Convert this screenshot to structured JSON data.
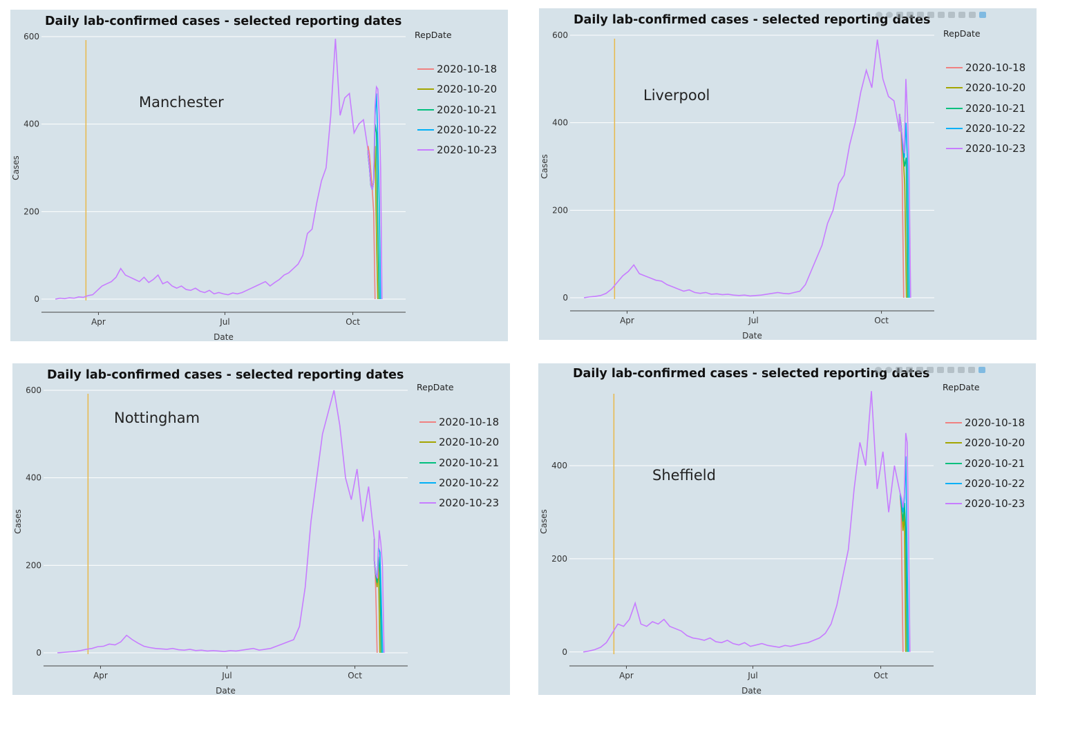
{
  "palette": {
    "panel_bg": "#d6e2e9",
    "grid": "#ffffff",
    "axis": "#444444",
    "vline": "#e8b84a",
    "series_colors": [
      "#f08080",
      "#a3a500",
      "#00bf7d",
      "#00b0f6",
      "#c77cff"
    ]
  },
  "modebar_icons": [
    "camera-icon",
    "zoom-icon",
    "pan-icon",
    "zoom-in-icon",
    "zoom-out-icon",
    "autoscale-icon",
    "home-icon",
    "spike-icon",
    "hover-closest-icon",
    "hover-compare-icon",
    "plotly-logo-icon"
  ],
  "chart_data": [
    {
      "type": "line",
      "title": "Daily lab-confirmed cases - selected reporting dates",
      "annotation": "Manchester",
      "xlabel": "Date",
      "ylabel": "Cases",
      "xticks": [
        "Apr",
        "Jul",
        "Oct"
      ],
      "yticks": [
        "0",
        "200",
        "400",
        "600"
      ],
      "ylim": [
        -30,
        630
      ],
      "xlim": [
        "2020-02-20",
        "2020-11-08"
      ],
      "grid": true,
      "vertical_line": "2020-03-23",
      "legend_title": "RepDate",
      "legend_position": "right",
      "series": [
        {
          "name": "2020-10-18",
          "end": "2020-10-17",
          "values": [
            350,
            330,
            290,
            250,
            200,
            0
          ]
        },
        {
          "name": "2020-10-20",
          "end": "2020-10-19",
          "values": [
            330,
            300,
            260,
            250,
            270,
            350,
            150,
            0
          ]
        },
        {
          "name": "2020-10-21",
          "end": "2020-10-20",
          "values": [
            330,
            300,
            260,
            250,
            270,
            400,
            380,
            160,
            0
          ]
        },
        {
          "name": "2020-10-22",
          "end": "2020-10-21",
          "values": [
            330,
            300,
            260,
            250,
            270,
            420,
            470,
            360,
            220,
            0
          ]
        },
        {
          "name": "2020-10-23",
          "end": "2020-10-22",
          "values": [
            330,
            300,
            260,
            250,
            270,
            440,
            485,
            480,
            420,
            300,
            0
          ]
        }
      ],
      "history": {
        "start": "2020-03-01",
        "end": "2020-10-12",
        "values": [
          0,
          2,
          1,
          3,
          2,
          5,
          4,
          8,
          10,
          20,
          30,
          35,
          40,
          50,
          70,
          55,
          50,
          45,
          40,
          50,
          38,
          45,
          55,
          35,
          40,
          30,
          25,
          30,
          22,
          20,
          25,
          18,
          15,
          20,
          12,
          15,
          12,
          10,
          14,
          12,
          15,
          20,
          25,
          30,
          35,
          40,
          30,
          38,
          45,
          55,
          60,
          70,
          80,
          100,
          150,
          160,
          220,
          270,
          300,
          420,
          595,
          420,
          460,
          470,
          380,
          400,
          410,
          340
        ]
      }
    },
    {
      "type": "line",
      "title": "Daily lab-confirmed cases - selected reporting dates",
      "annotation": "Liverpool",
      "xlabel": "Date",
      "ylabel": "Cases",
      "xticks": [
        "Apr",
        "Jul",
        "Oct"
      ],
      "yticks": [
        "0",
        "200",
        "400",
        "600"
      ],
      "ylim": [
        -30,
        630
      ],
      "xlim": [
        "2020-02-20",
        "2020-11-08"
      ],
      "grid": true,
      "vertical_line": "2020-03-23",
      "legend_title": "RepDate",
      "legend_position": "right",
      "series": [
        {
          "name": "2020-10-18",
          "end": "2020-10-17",
          "values": [
            420,
            400,
            260,
            0
          ]
        },
        {
          "name": "2020-10-20",
          "end": "2020-10-19",
          "values": [
            420,
            390,
            330,
            260,
            0
          ]
        },
        {
          "name": "2020-10-21",
          "end": "2020-10-20",
          "values": [
            420,
            390,
            340,
            300,
            320,
            0
          ]
        },
        {
          "name": "2020-10-22",
          "end": "2020-10-21",
          "values": [
            420,
            390,
            350,
            320,
            400,
            300,
            0
          ]
        },
        {
          "name": "2020-10-23",
          "end": "2020-10-22",
          "values": [
            420,
            390,
            360,
            330,
            500,
            420,
            300,
            0
          ]
        }
      ],
      "history": {
        "start": "2020-03-01",
        "end": "2020-10-14",
        "values": [
          0,
          2,
          3,
          5,
          10,
          20,
          35,
          50,
          60,
          75,
          55,
          50,
          45,
          40,
          38,
          30,
          25,
          20,
          15,
          18,
          12,
          10,
          12,
          8,
          9,
          7,
          8,
          6,
          5,
          6,
          4,
          5,
          6,
          8,
          10,
          12,
          10,
          9,
          12,
          15,
          30,
          60,
          90,
          120,
          170,
          200,
          260,
          280,
          350,
          400,
          470,
          520,
          480,
          590,
          500,
          460,
          450,
          380
        ]
      }
    },
    {
      "type": "line",
      "title": "Daily lab-confirmed cases - selected reporting dates",
      "annotation": "Nottingham",
      "xlabel": "Date",
      "ylabel": "Cases",
      "xticks": [
        "Apr",
        "Jul",
        "Oct"
      ],
      "yticks": [
        "0",
        "200",
        "400",
        "600"
      ],
      "ylim": [
        -30,
        630
      ],
      "xlim": [
        "2020-02-20",
        "2020-11-08"
      ],
      "grid": true,
      "vertical_line": "2020-03-23",
      "legend_title": "RepDate",
      "legend_position": "right",
      "series": [
        {
          "name": "2020-10-18",
          "end": "2020-10-17",
          "values": [
            210,
            180,
            100,
            0
          ]
        },
        {
          "name": "2020-10-20",
          "end": "2020-10-19",
          "values": [
            210,
            180,
            150,
            200,
            0
          ]
        },
        {
          "name": "2020-10-21",
          "end": "2020-10-20",
          "values": [
            210,
            180,
            160,
            220,
            180,
            0
          ]
        },
        {
          "name": "2020-10-22",
          "end": "2020-10-21",
          "values": [
            210,
            180,
            170,
            240,
            230,
            120,
            0
          ]
        },
        {
          "name": "2020-10-23",
          "end": "2020-10-22",
          "values": [
            210,
            180,
            170,
            280,
            250,
            200,
            0
          ]
        }
      ],
      "history": {
        "start": "2020-03-01",
        "end": "2020-10-15",
        "values": [
          0,
          1,
          2,
          3,
          5,
          8,
          10,
          14,
          15,
          20,
          18,
          25,
          40,
          30,
          22,
          15,
          12,
          10,
          9,
          8,
          10,
          7,
          6,
          8,
          5,
          6,
          4,
          5,
          4,
          3,
          5,
          4,
          6,
          8,
          10,
          6,
          8,
          10,
          15,
          20,
          25,
          30,
          60,
          150,
          300,
          400,
          500,
          550,
          600,
          520,
          400,
          350,
          420,
          300,
          380,
          260
        ]
      }
    },
    {
      "type": "line",
      "title": "Daily lab-confirmed cases - selected reporting dates",
      "annotation": "Sheffield",
      "xlabel": "Date",
      "ylabel": "Cases",
      "xticks": [
        "Apr",
        "Jul",
        "Oct"
      ],
      "yticks": [
        "0",
        "200",
        "400"
      ],
      "ylim": [
        -30,
        590
      ],
      "xlim": [
        "2020-02-20",
        "2020-11-08"
      ],
      "grid": true,
      "vertical_line": "2020-03-23",
      "legend_title": "RepDate",
      "legend_position": "right",
      "series": [
        {
          "name": "2020-10-18",
          "end": "2020-10-17",
          "values": [
            340,
            300,
            150,
            0
          ]
        },
        {
          "name": "2020-10-20",
          "end": "2020-10-19",
          "values": [
            340,
            310,
            260,
            300,
            0
          ]
        },
        {
          "name": "2020-10-21",
          "end": "2020-10-20",
          "values": [
            340,
            310,
            280,
            320,
            260,
            0
          ]
        },
        {
          "name": "2020-10-22",
          "end": "2020-10-21",
          "values": [
            340,
            320,
            300,
            330,
            420,
            200,
            0
          ]
        },
        {
          "name": "2020-10-23",
          "end": "2020-10-22",
          "values": [
            340,
            330,
            310,
            340,
            470,
            450,
            250,
            0
          ]
        }
      ],
      "history": {
        "start": "2020-03-01",
        "end": "2020-10-15",
        "values": [
          0,
          2,
          5,
          10,
          20,
          40,
          60,
          55,
          70,
          105,
          60,
          55,
          65,
          60,
          70,
          55,
          50,
          45,
          35,
          30,
          28,
          25,
          30,
          22,
          20,
          25,
          18,
          15,
          20,
          12,
          15,
          18,
          14,
          12,
          10,
          14,
          12,
          15,
          18,
          20,
          25,
          30,
          40,
          60,
          100,
          160,
          220,
          350,
          450,
          400,
          560,
          350,
          430,
          300,
          400,
          340
        ]
      }
    }
  ]
}
